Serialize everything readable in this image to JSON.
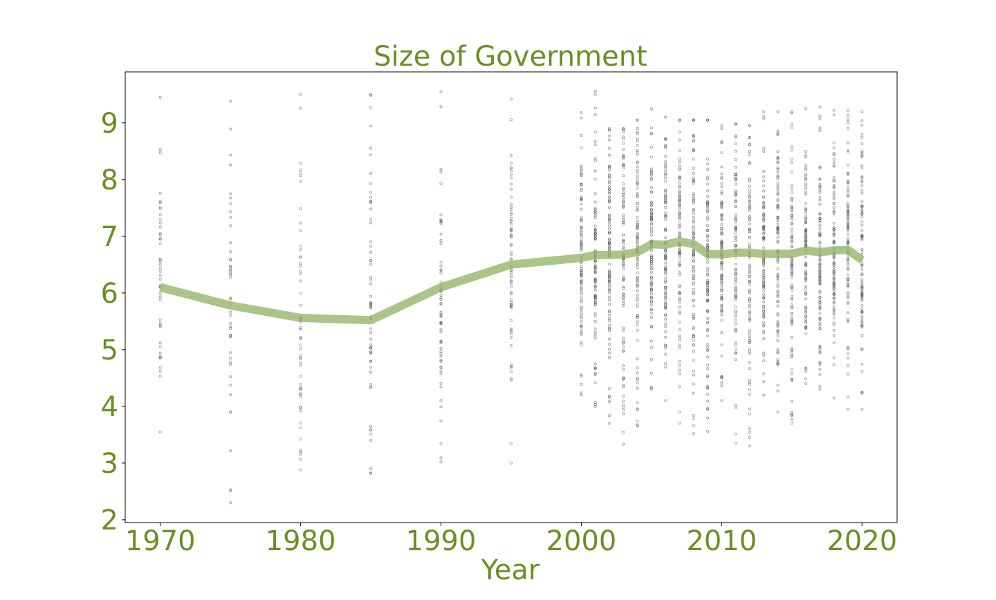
{
  "colors": {
    "accent_text": "#6b8e23",
    "mean_line": "#8fb060",
    "scatter_points": "#555555",
    "frame": "#000000",
    "background": "#ffffff"
  },
  "chart_data": {
    "type": "scatter",
    "title": "Size of Government",
    "xlabel": "Year",
    "ylabel": "",
    "xlim": [
      1967.5,
      2022.5
    ],
    "ylim": [
      1.95,
      9.9
    ],
    "grid": false,
    "legend": "none",
    "x_ticks": [
      1970,
      1980,
      1990,
      2000,
      2010,
      2020
    ],
    "y_ticks": [
      2,
      3,
      4,
      5,
      6,
      7,
      8,
      9
    ],
    "series": [
      {
        "kind": "line",
        "x": [
          1970,
          1975,
          1980,
          1985,
          1990,
          1995,
          2000,
          2001,
          2002,
          2003,
          2004,
          2005,
          2006,
          2007,
          2008,
          2009,
          2010,
          2011,
          2012,
          2013,
          2014,
          2015,
          2016,
          2017,
          2018,
          2019,
          2020
        ],
        "y": [
          6.1,
          5.78,
          5.56,
          5.52,
          6.1,
          6.5,
          6.62,
          6.67,
          6.67,
          6.68,
          6.72,
          6.86,
          6.85,
          6.91,
          6.86,
          6.69,
          6.68,
          6.71,
          6.71,
          6.69,
          6.69,
          6.69,
          6.75,
          6.72,
          6.75,
          6.76,
          6.58
        ]
      },
      {
        "kind": "scatter",
        "years": [
          1970,
          1975,
          1980,
          1985,
          1990,
          1995,
          2000,
          2001,
          2002,
          2003,
          2004,
          2005,
          2006,
          2007,
          2008,
          2009,
          2010,
          2011,
          2012,
          2013,
          2014,
          2015,
          2016,
          2017,
          2018,
          2019,
          2020
        ],
        "ymin": [
          3.55,
          2.3,
          2.88,
          2.82,
          3.02,
          3.0,
          4.2,
          4.0,
          3.7,
          3.33,
          3.65,
          4.3,
          4.1,
          3.7,
          3.52,
          3.56,
          4.1,
          3.35,
          3.3,
          4.2,
          3.9,
          3.7,
          4.4,
          4.3,
          4.15,
          3.95,
          3.95
        ],
        "ymax": [
          9.45,
          9.38,
          9.5,
          9.5,
          9.55,
          9.42,
          9.18,
          9.56,
          8.9,
          8.9,
          9.05,
          9.25,
          9.1,
          9.05,
          9.05,
          9.05,
          8.95,
          8.98,
          8.95,
          9.2,
          9.2,
          9.2,
          9.25,
          9.28,
          9.22,
          9.22,
          9.2
        ],
        "count": [
          45,
          45,
          55,
          60,
          60,
          70,
          95,
          95,
          95,
          95,
          95,
          95,
          95,
          95,
          95,
          95,
          95,
          95,
          95,
          95,
          95,
          95,
          95,
          95,
          95,
          95,
          95
        ]
      }
    ]
  }
}
